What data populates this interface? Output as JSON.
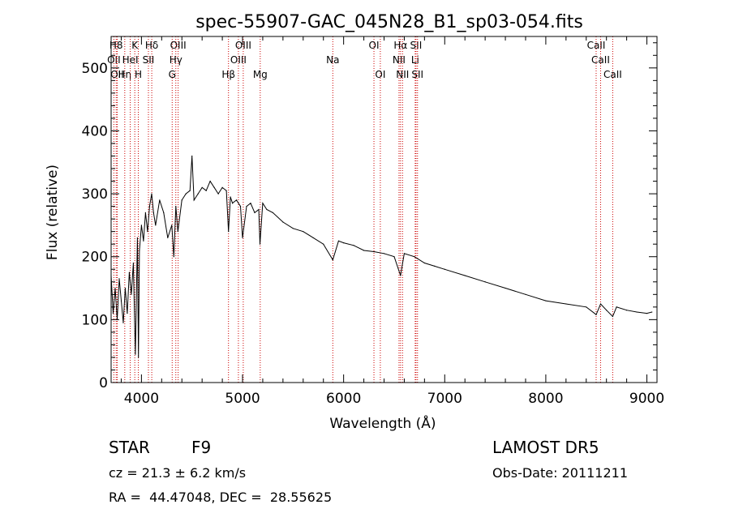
{
  "chart_data": {
    "type": "line",
    "title": "spec-55907-GAC_045N28_B1_sp03-054.fits",
    "xlabel": "Wavelength (Å)",
    "ylabel": "Flux (relative)",
    "xlim": [
      3700,
      9100
    ],
    "ylim": [
      0,
      550
    ],
    "xticks": [
      4000,
      5000,
      6000,
      7000,
      8000,
      9000
    ],
    "yticks": [
      0,
      100,
      200,
      300,
      400,
      500
    ],
    "grid": false,
    "line_color": "#000000",
    "marker_color": "#cc0000",
    "series": [
      {
        "x": [
          3700,
          3720,
          3740,
          3760,
          3780,
          3800,
          3820,
          3840,
          3860,
          3880,
          3900,
          3920,
          3940,
          3960,
          3970,
          3980,
          4000,
          4020,
          4040,
          4060,
          4080,
          4101,
          4120,
          4140,
          4180,
          4220,
          4260,
          4300,
          4320,
          4340,
          4360,
          4400,
          4440,
          4480,
          4500,
          4520,
          4560,
          4600,
          4640,
          4680,
          4720,
          4760,
          4800,
          4840,
          4861,
          4880,
          4900,
          4940,
          4980,
          5000,
          5040,
          5080,
          5120,
          5160,
          5172,
          5200,
          5240,
          5300,
          5400,
          5500,
          5600,
          5700,
          5800,
          5893,
          5950,
          6000,
          6100,
          6200,
          6300,
          6400,
          6500,
          6563,
          6600,
          6700,
          6800,
          6900,
          7000,
          7200,
          7400,
          7600,
          7800,
          8000,
          8200,
          8400,
          8498,
          8542,
          8600,
          8662,
          8700,
          8800,
          8900,
          9000,
          9050
        ],
        "y": [
          170,
          110,
          150,
          100,
          165,
          130,
          95,
          150,
          110,
          175,
          140,
          190,
          45,
          230,
          40,
          210,
          250,
          225,
          270,
          240,
          280,
          300,
          270,
          250,
          290,
          270,
          230,
          250,
          200,
          280,
          240,
          290,
          300,
          305,
          360,
          290,
          300,
          310,
          305,
          320,
          310,
          300,
          310,
          305,
          240,
          295,
          285,
          290,
          280,
          230,
          280,
          285,
          270,
          275,
          220,
          285,
          275,
          270,
          255,
          245,
          240,
          230,
          220,
          195,
          225,
          222,
          218,
          210,
          208,
          205,
          200,
          170,
          205,
          200,
          190,
          185,
          180,
          170,
          160,
          150,
          140,
          130,
          125,
          120,
          108,
          125,
          115,
          105,
          120,
          115,
          112,
          110,
          112
        ]
      }
    ],
    "spectral_lines": [
      {
        "label": "OII",
        "x": 3727,
        "row": 1
      },
      {
        "label": "H8",
        "x": 3750,
        "row": 0
      },
      {
        "label": "OII",
        "x": 3760,
        "row": 2
      },
      {
        "label": "Hη",
        "x": 3835,
        "row": 2
      },
      {
        "label": "HeI",
        "x": 3889,
        "row": 1
      },
      {
        "label": "K",
        "x": 3934,
        "row": 0
      },
      {
        "label": "H",
        "x": 3969,
        "row": 2
      },
      {
        "label": "SII",
        "x": 4069,
        "row": 1
      },
      {
        "label": "Hδ",
        "x": 4102,
        "row": 0
      },
      {
        "label": "G",
        "x": 4304,
        "row": 2
      },
      {
        "label": "OIII",
        "x": 4363,
        "row": 0
      },
      {
        "label": "Hγ",
        "x": 4340,
        "row": 1
      },
      {
        "label": "Hβ",
        "x": 4861,
        "row": 2
      },
      {
        "label": "OIII",
        "x": 4959,
        "row": 1
      },
      {
        "label": "OIII",
        "x": 5007,
        "row": 0
      },
      {
        "label": "Mg",
        "x": 5175,
        "row": 2
      },
      {
        "label": "Na",
        "x": 5893,
        "row": 1
      },
      {
        "label": "OI",
        "x": 6300,
        "row": 0
      },
      {
        "label": "OI",
        "x": 6363,
        "row": 2
      },
      {
        "label": "NII",
        "x": 6548,
        "row": 1
      },
      {
        "label": "Hα",
        "x": 6563,
        "row": 0
      },
      {
        "label": "NII",
        "x": 6583,
        "row": 2
      },
      {
        "label": "Li",
        "x": 6708,
        "row": 1
      },
      {
        "label": "SII",
        "x": 6716,
        "row": 0
      },
      {
        "label": "SII",
        "x": 6731,
        "row": 2
      },
      {
        "label": "CaII",
        "x": 8498,
        "row": 0
      },
      {
        "label": "CaII",
        "x": 8542,
        "row": 1
      },
      {
        "label": "CaII",
        "x": 8662,
        "row": 2
      }
    ]
  },
  "info": {
    "object_type": "STAR",
    "subclass": "F9",
    "survey": "LAMOST DR5",
    "cz": "cz = 21.3 ± 6.2 km/s",
    "obs_date": "Obs-Date: 20111211",
    "coords": "RA =  44.47048, DEC =  28.55625"
  }
}
